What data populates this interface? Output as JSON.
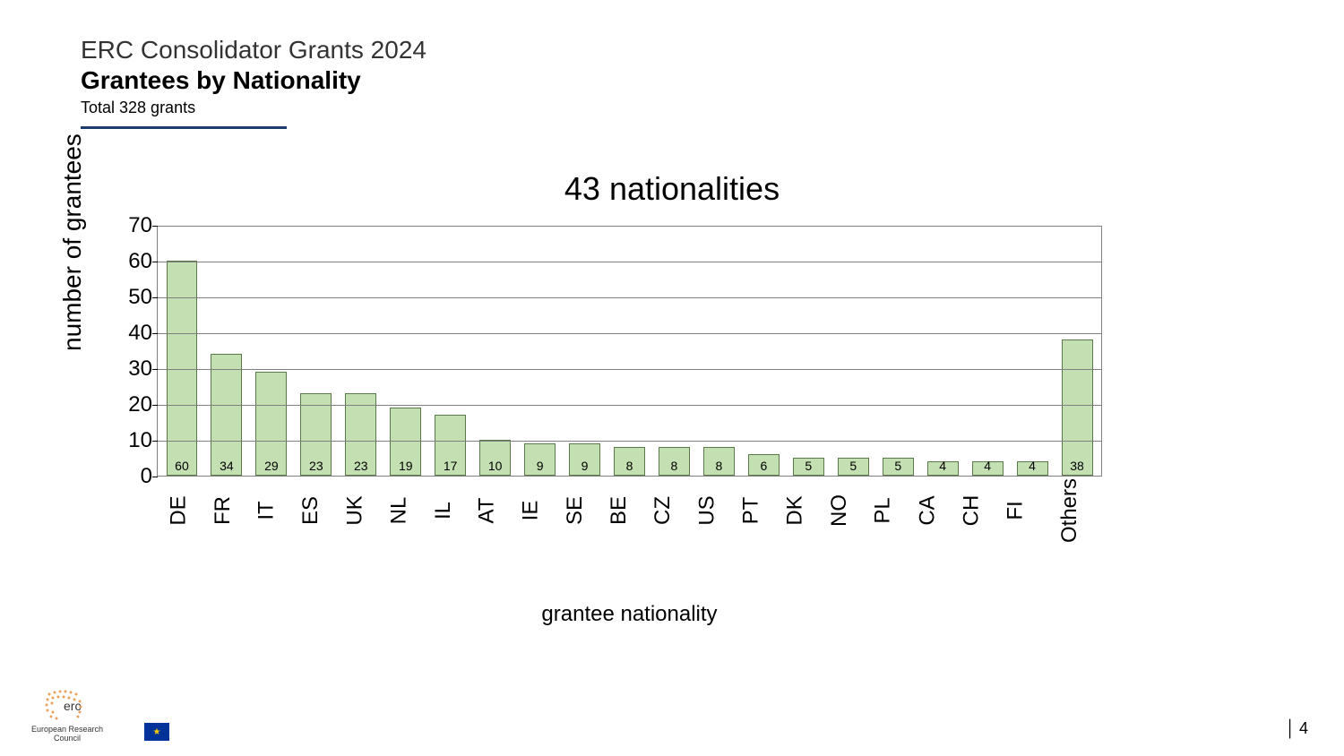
{
  "header": {
    "line1": "ERC Consolidator Grants 2024",
    "line2": "Grantees by Nationality",
    "subtitle": "Total 328 grants"
  },
  "chart": {
    "type": "bar",
    "title": "43 nationalities",
    "y_label": "number of grantees",
    "x_label": "grantee nationality",
    "ylim": [
      0,
      70
    ],
    "ytick_step": 10,
    "yticks": [
      0,
      10,
      20,
      30,
      40,
      50,
      60,
      70
    ],
    "bar_fill": "#c4dfb2",
    "bar_border": "#5a7a4a",
    "grid_color": "#808080",
    "background_color": "#ffffff",
    "bar_width_ratio": 0.7,
    "title_fontsize": 36,
    "axis_label_fontsize": 28,
    "tick_fontsize": 24,
    "value_label_fontsize": 14,
    "categories": [
      "DE",
      "FR",
      "IT",
      "ES",
      "UK",
      "NL",
      "IL",
      "AT",
      "IE",
      "SE",
      "BE",
      "CZ",
      "US",
      "PT",
      "DK",
      "NO",
      "PL",
      "CA",
      "CH",
      "FI",
      "Others"
    ],
    "values": [
      60,
      34,
      29,
      23,
      23,
      19,
      17,
      10,
      9,
      9,
      8,
      8,
      8,
      6,
      5,
      5,
      5,
      4,
      4,
      4,
      38
    ]
  },
  "footer": {
    "erc_text": "erc",
    "erc_sub": "European Research Council",
    "page_number": "4"
  }
}
